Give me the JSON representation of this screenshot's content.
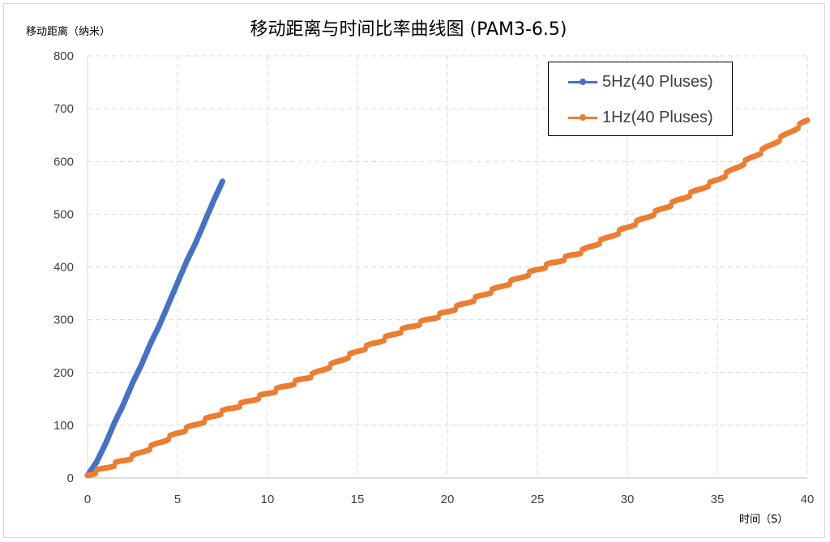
{
  "chart_data": {
    "type": "line",
    "title": "移动距离与时间比率曲线图 (PAM3-6.5)",
    "xlabel": "时间（S）",
    "ylabel": "移动距离（纳米）",
    "xlim": [
      0,
      40
    ],
    "ylim": [
      0,
      800
    ],
    "xticks": [
      "0",
      "5",
      "10",
      "15",
      "20",
      "25",
      "30",
      "35",
      "40"
    ],
    "yticks": [
      "0",
      "100",
      "200",
      "300",
      "400",
      "500",
      "600",
      "700",
      "800"
    ],
    "grid": true,
    "legend_position": "top-right",
    "series": [
      {
        "name": "5Hz(40 Pluses)",
        "color": "#4472c4",
        "x": [
          0,
          0.5,
          1,
          1.5,
          2,
          2.5,
          3,
          3.5,
          4,
          4.5,
          5,
          5.5,
          6,
          6.5,
          7,
          7.5
        ],
        "y": [
          5,
          30,
          65,
          105,
          140,
          180,
          215,
          255,
          290,
          330,
          370,
          410,
          445,
          485,
          525,
          562
        ]
      },
      {
        "name": "1Hz(40 Pluses)",
        "color": "#ed7d31",
        "x": [
          0,
          2.5,
          5,
          7.5,
          10,
          12.5,
          15,
          17.5,
          20,
          22.5,
          25,
          27.5,
          30,
          32.5,
          35,
          37.5,
          40
        ],
        "y": [
          5,
          40,
          85,
          125,
          160,
          195,
          240,
          280,
          315,
          355,
          395,
          430,
          475,
          520,
          565,
          620,
          678
        ]
      }
    ]
  }
}
